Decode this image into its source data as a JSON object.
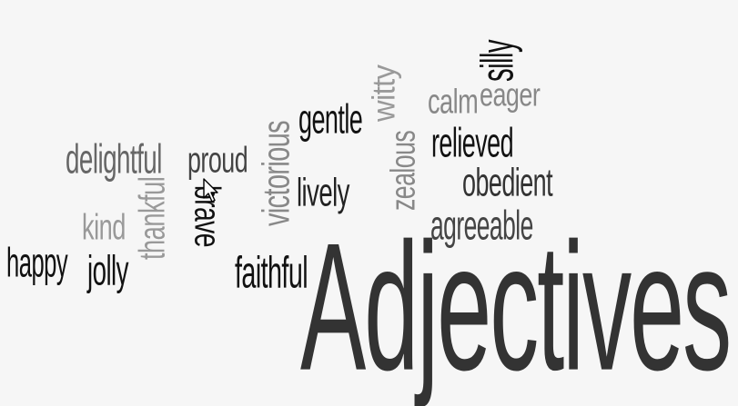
{
  "cloud": {
    "words": [
      {
        "text": "Adjectives",
        "color": "#333333"
      },
      {
        "text": "silly",
        "color": "#111111"
      },
      {
        "text": "eager",
        "color": "#888888"
      },
      {
        "text": "calm",
        "color": "#888888"
      },
      {
        "text": "witty",
        "color": "#999999"
      },
      {
        "text": "gentle",
        "color": "#111111"
      },
      {
        "text": "relieved",
        "color": "#111111"
      },
      {
        "text": "zealous",
        "color": "#888888"
      },
      {
        "text": "obedient",
        "color": "#333333"
      },
      {
        "text": "victorious",
        "color": "#888888"
      },
      {
        "text": "delightful",
        "color": "#666666"
      },
      {
        "text": "proud",
        "color": "#444444"
      },
      {
        "text": "lively",
        "color": "#222222"
      },
      {
        "text": "agreeable",
        "color": "#444444"
      },
      {
        "text": "thankful",
        "color": "#999999"
      },
      {
        "text": "brave",
        "color": "#111111"
      },
      {
        "text": "kind",
        "color": "#999999"
      },
      {
        "text": "happy",
        "color": "#111111"
      },
      {
        "text": "jolly",
        "color": "#111111"
      },
      {
        "text": "faithful",
        "color": "#111111"
      }
    ]
  },
  "cursor": {
    "icon": "mouse-pointer-icon"
  }
}
